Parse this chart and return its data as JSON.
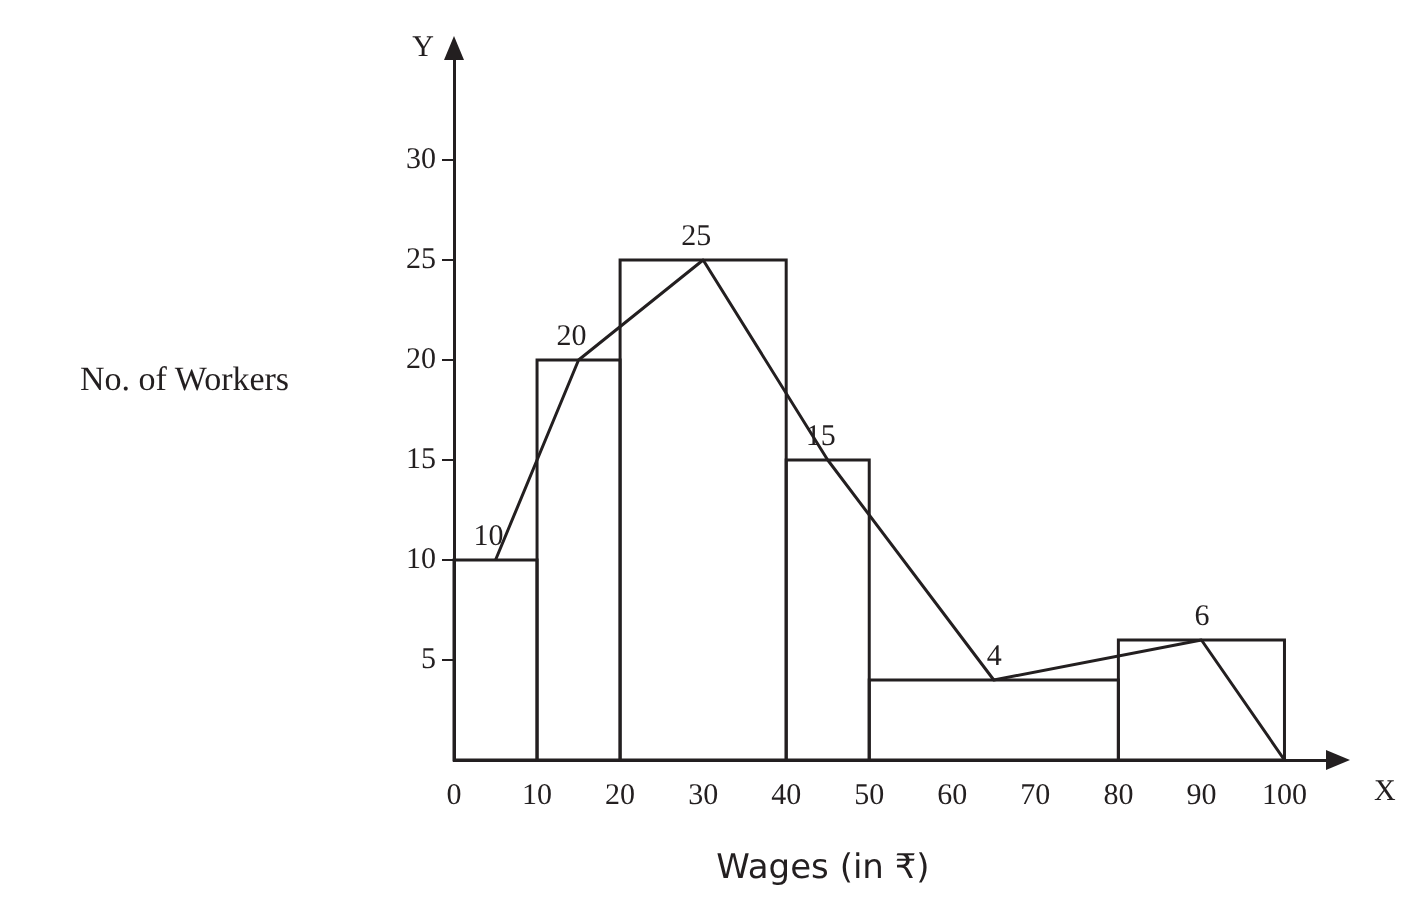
{
  "chart_data": {
    "type": "histogram",
    "xlabel": "Wages (in ₹)",
    "ylabel": "No. of Workers",
    "annotations": [
      "X",
      "Y"
    ],
    "bins": [
      0,
      10,
      20,
      40,
      50,
      80,
      100
    ],
    "values": [
      10,
      20,
      25,
      15,
      4,
      6
    ],
    "color": "#231f20",
    "series": [
      {
        "type": "line",
        "x": [
          5,
          15,
          30,
          45,
          65,
          90,
          100
        ],
        "values": [
          10,
          20,
          25,
          15,
          4,
          6,
          0
        ],
        "value_labels": [
          "10",
          "20",
          "25",
          "15",
          "4",
          "6",
          null
        ],
        "color": "#231f20"
      }
    ],
    "xlim": [
      0,
      105
    ],
    "xticks": [
      0,
      10,
      20,
      30,
      40,
      50,
      60,
      70,
      80,
      90,
      100
    ],
    "ylim": [
      0,
      35
    ],
    "yticks": [
      5,
      10,
      15,
      20,
      25,
      30
    ],
    "grid": false,
    "legend": false
  }
}
